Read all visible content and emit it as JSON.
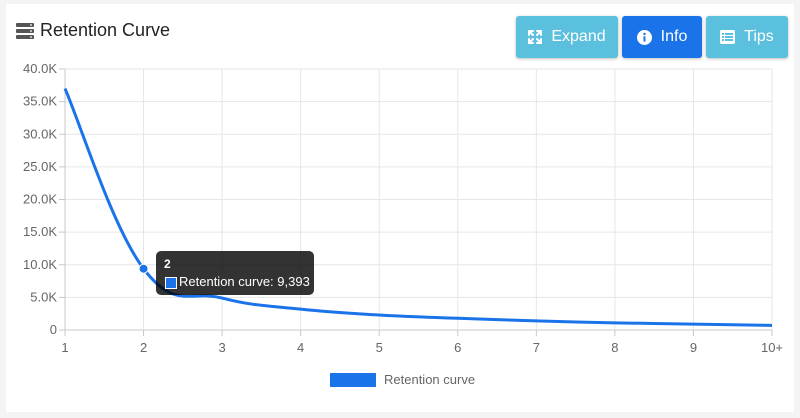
{
  "panel": {
    "title": "Retention Curve",
    "title_icon": "server-stack-icon"
  },
  "toolbar": {
    "expand_label": "Expand",
    "expand_icon": "expand-arrows-icon",
    "info_label": "Info",
    "info_icon": "info-circle-icon",
    "tips_label": "Tips",
    "tips_icon": "list-icon"
  },
  "colors": {
    "line": "#1a73e8",
    "button_cyan": "#5bc0de",
    "button_blue": "#1a73e8"
  },
  "tooltip": {
    "title": "2",
    "body": "Retention curve: 9,393"
  },
  "legend": {
    "label": "Retention curve"
  },
  "chart_data": {
    "type": "line",
    "categories": [
      "1",
      "2",
      "3",
      "4",
      "5",
      "6",
      "7",
      "8",
      "9",
      "10+"
    ],
    "series": [
      {
        "name": "Retention curve",
        "values": [
          37000,
          9393,
          4900,
          3200,
          2300,
          1800,
          1400,
          1100,
          900,
          700
        ]
      }
    ],
    "y_tick_labels": [
      "0",
      "5.0K",
      "10.0K",
      "15.0K",
      "20.0K",
      "25.0K",
      "30.0K",
      "35.0K",
      "40.0K"
    ],
    "ylim": [
      0,
      40000
    ],
    "grid": true,
    "legend_position": "bottom",
    "highlighted_category": "2"
  }
}
